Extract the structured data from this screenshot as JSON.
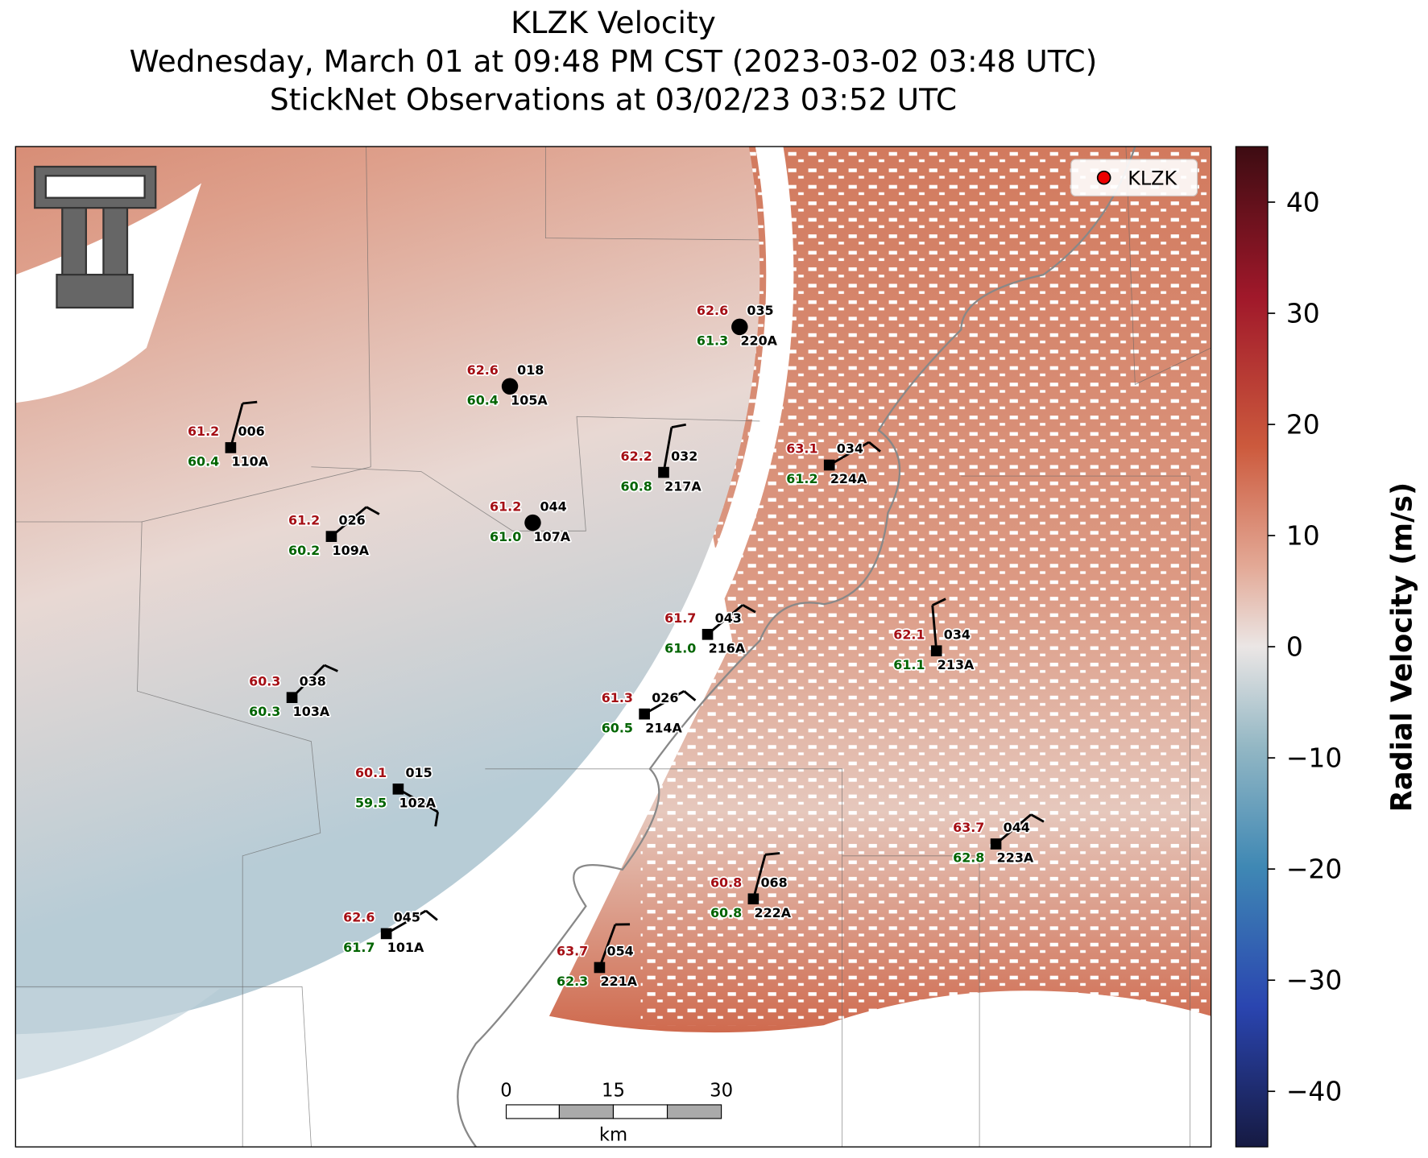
{
  "title": [
    "KLZK Velocity",
    "Wednesday, March 01 at 09:48 PM CST (2023-03-02 03:48 UTC)",
    "StickNet Observations at 03/02/23 03:52 UTC"
  ],
  "legend": "KLZK",
  "colorbar": {
    "label": "Radial Velocity (m/s)",
    "lim": [
      -45,
      45
    ],
    "ticks": [
      40,
      30,
      20,
      10,
      0,
      {
        "value": -10,
        "label": "−10"
      },
      {
        "value": -20,
        "label": "−20"
      },
      {
        "value": -30,
        "label": "−30"
      },
      {
        "value": -40,
        "label": "−40"
      }
    ]
  },
  "stations": [
    {
      "id": "110A",
      "temp": "61.2",
      "dew": "60.4",
      "num": "006"
    },
    {
      "id": "105A",
      "temp": "62.6",
      "dew": "60.4",
      "num": "018"
    },
    {
      "id": "220A",
      "temp": "62.6",
      "dew": "61.3",
      "num": "035"
    },
    {
      "id": "109A",
      "temp": "61.2",
      "dew": "60.2",
      "num": "026"
    },
    {
      "id": "107A",
      "temp": "61.2",
      "dew": "61.0",
      "num": "044"
    },
    {
      "id": "217A",
      "temp": "62.2",
      "dew": "60.8",
      "num": "032"
    },
    {
      "id": "224A",
      "temp": "63.1",
      "dew": "61.2",
      "num": "034"
    },
    {
      "id": "216A",
      "temp": "61.7",
      "dew": "61.0",
      "num": "043"
    },
    {
      "id": "213A",
      "temp": "62.1",
      "dew": "61.1",
      "num": "034"
    },
    {
      "id": "103A",
      "temp": "60.3",
      "dew": "60.3",
      "num": "038"
    },
    {
      "id": "214A",
      "temp": "61.3",
      "dew": "60.5",
      "num": "026"
    },
    {
      "id": "102A",
      "temp": "60.1",
      "dew": "59.5",
      "num": "015"
    },
    {
      "id": "223A",
      "temp": "63.7",
      "dew": "62.8",
      "num": "044"
    },
    {
      "id": "222A",
      "temp": "60.8",
      "dew": "60.8",
      "num": "068"
    },
    {
      "id": "101A",
      "temp": "62.6",
      "dew": "61.7",
      "num": "045"
    },
    {
      "id": "221A",
      "temp": "63.7",
      "dew": "62.3",
      "num": "054"
    }
  ],
  "scale_bar": {
    "ticks": [
      "0",
      "15",
      "30"
    ],
    "unit": "km"
  }
}
